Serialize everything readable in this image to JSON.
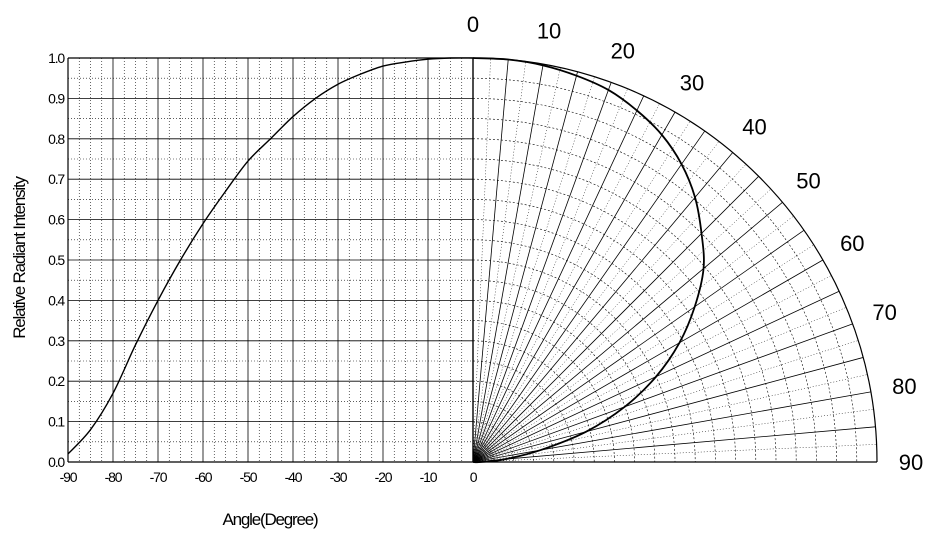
{
  "chart_data": [
    {
      "type": "line",
      "xlabel": "Angle(Degree)",
      "ylabel": "Relative Radiant Intensity",
      "xlim": [
        -90,
        0
      ],
      "ylim": [
        0.0,
        1.0
      ],
      "x_ticks": [
        "-90",
        "-80",
        "-70",
        "-60",
        "-50",
        "-40",
        "-30",
        "-20",
        "-10",
        "0"
      ],
      "y_ticks": [
        "0.0",
        "0.1",
        "0.2",
        "0.3",
        "0.4",
        "0.5",
        "0.6",
        "0.7",
        "0.8",
        "0.9",
        "1.0"
      ],
      "grid": true,
      "series": [
        {
          "x": [
            -90,
            -85,
            -80,
            -75,
            -70,
            -65,
            -60,
            -55,
            -50,
            -45,
            -40,
            -35,
            -30,
            -25,
            -20,
            -15,
            -10,
            -5,
            0
          ],
          "values": [
            0.02,
            0.08,
            0.17,
            0.29,
            0.4,
            0.5,
            0.59,
            0.67,
            0.745,
            0.8,
            0.855,
            0.9,
            0.935,
            0.96,
            0.98,
            0.99,
            0.997,
            1.0,
            1.0
          ]
        }
      ]
    },
    {
      "type": "polar",
      "theta_ticks": [
        "0",
        "10",
        "20",
        "30",
        "40",
        "50",
        "60",
        "70",
        "80",
        "90"
      ],
      "theta_range": [
        0,
        90
      ],
      "r_range": [
        0,
        1.0
      ],
      "grid": true,
      "series": [
        {
          "theta": [
            0,
            5,
            10,
            15,
            20,
            25,
            30,
            35,
            40,
            45,
            50,
            55,
            60,
            65,
            70,
            75,
            80,
            85,
            90
          ],
          "values": [
            1.0,
            1.0,
            0.997,
            0.99,
            0.98,
            0.96,
            0.935,
            0.9,
            0.855,
            0.8,
            0.745,
            0.67,
            0.59,
            0.5,
            0.4,
            0.29,
            0.17,
            0.08,
            0.02
          ]
        }
      ]
    }
  ]
}
